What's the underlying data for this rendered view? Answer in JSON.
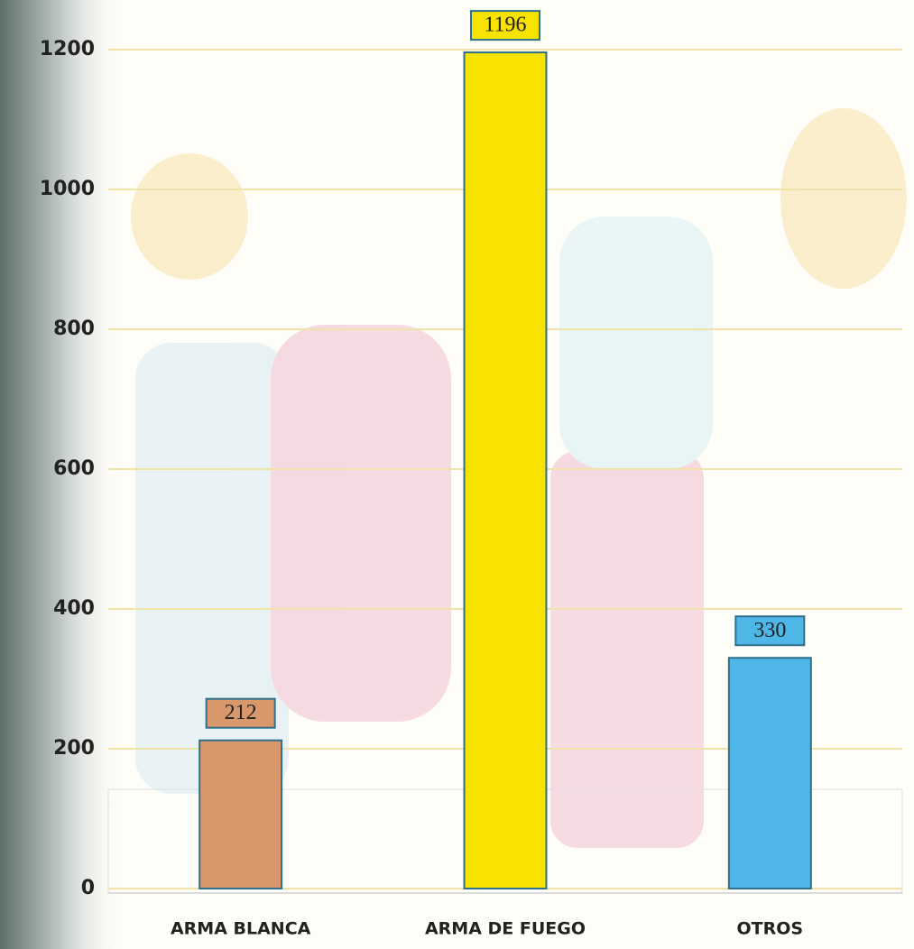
{
  "chart_data": {
    "type": "bar",
    "categories": [
      "ARMA BLANCA",
      "ARMA DE FUEGO",
      "OTROS"
    ],
    "values": [
      212,
      1196,
      330
    ],
    "colors": [
      "#d9986c",
      "#f7e200",
      "#4fb6e8"
    ],
    "ylim": [
      0,
      1200
    ],
    "yticks": [
      0,
      200,
      400,
      600,
      800,
      1000,
      1200
    ],
    "grid": true
  }
}
